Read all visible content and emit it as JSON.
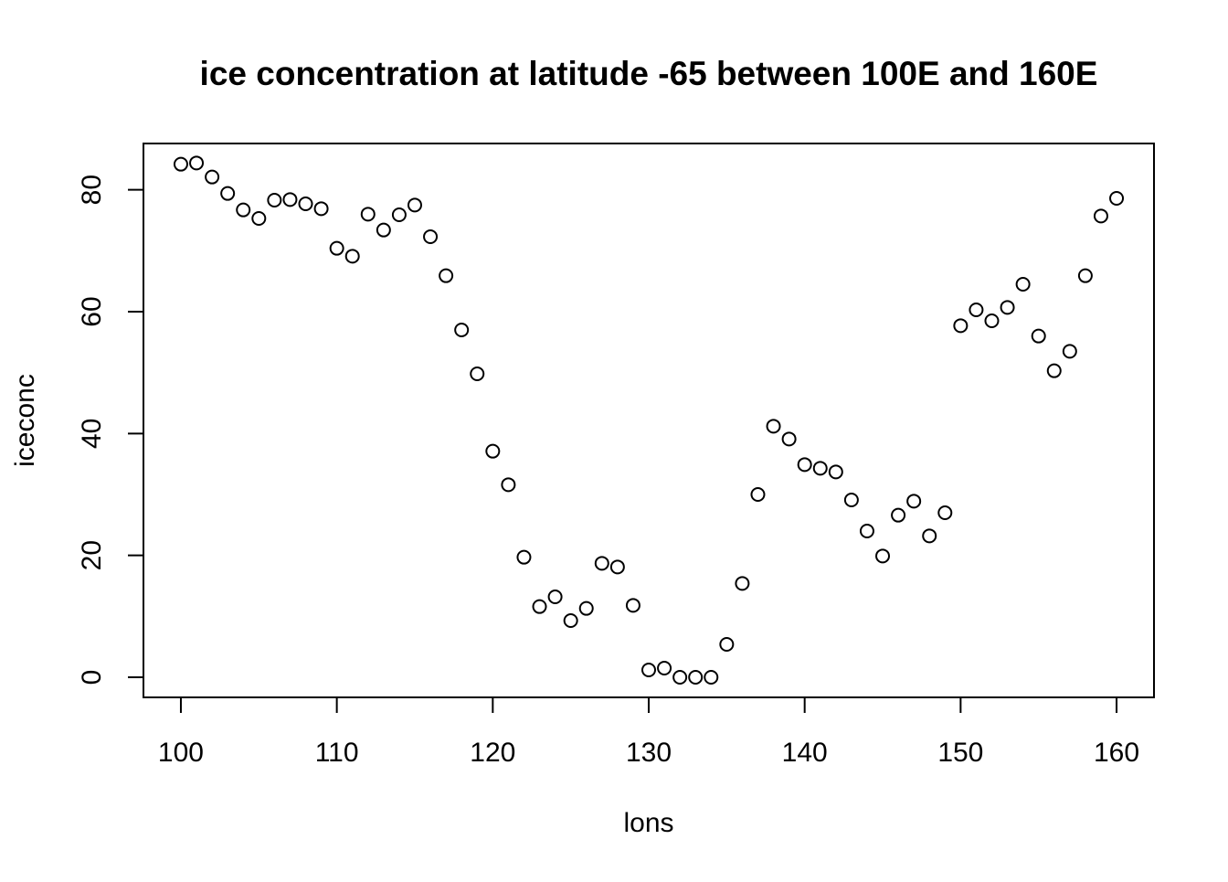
{
  "chart_data": {
    "type": "scatter",
    "title": "ice concentration at latitude -65 between 100E and 160E",
    "xlabel": "lons",
    "ylabel": "iceconc",
    "xlim": [
      97.6,
      162.4
    ],
    "ylim": [
      -3.3,
      87.6
    ],
    "xticks": [
      100,
      110,
      120,
      130,
      140,
      150,
      160
    ],
    "yticks": [
      0,
      20,
      40,
      60,
      80
    ],
    "grid": false,
    "marker": "open-circle",
    "color": "#000000",
    "x": [
      100,
      101,
      102,
      103,
      104,
      105,
      106,
      107,
      108,
      109,
      110,
      111,
      112,
      113,
      114,
      115,
      116,
      117,
      118,
      119,
      120,
      121,
      122,
      123,
      124,
      125,
      126,
      127,
      128,
      129,
      130,
      131,
      132,
      133,
      134,
      135,
      136,
      137,
      138,
      139,
      140,
      141,
      142,
      143,
      144,
      145,
      146,
      147,
      148,
      149,
      150,
      151,
      152,
      153,
      154,
      155,
      156,
      157,
      158,
      159,
      160
    ],
    "y": [
      84.2,
      84.4,
      82.1,
      79.4,
      76.7,
      75.3,
      78.3,
      78.4,
      77.7,
      76.9,
      70.4,
      69.1,
      76.0,
      73.4,
      75.9,
      77.5,
      72.3,
      65.9,
      57.0,
      49.8,
      37.1,
      31.6,
      19.7,
      11.6,
      13.2,
      9.3,
      11.3,
      18.7,
      18.1,
      11.8,
      1.2,
      1.5,
      0.0,
      0.0,
      0.0,
      5.4,
      15.4,
      30.0,
      41.2,
      39.1,
      34.9,
      34.3,
      33.7,
      29.1,
      24.0,
      19.9,
      26.6,
      28.9,
      23.2,
      27.0,
      57.7,
      60.3,
      58.5,
      60.7,
      64.5,
      56.0,
      50.3,
      53.5,
      65.9,
      75.7,
      78.6
    ]
  }
}
